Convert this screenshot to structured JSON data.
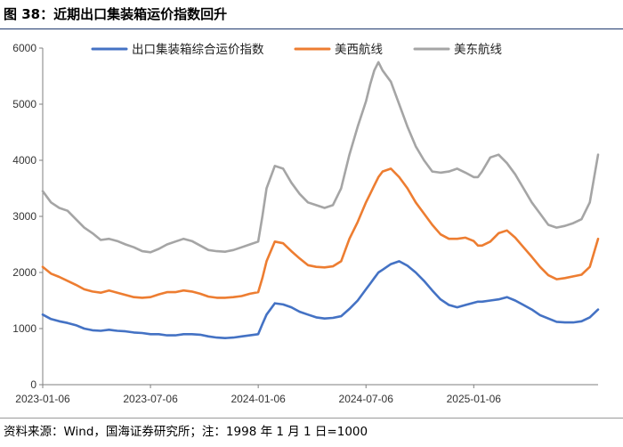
{
  "title": "图 38：近期出口集装箱运价指数回升",
  "source": "资料来源：Wind，国海证券研究所；注：1998 年 1 月 1 日=1000",
  "chart_data": {
    "type": "line",
    "title": "近期出口集装箱运价指数回升",
    "xlabel": "",
    "ylabel": "",
    "ylim": [
      0,
      6000
    ],
    "yticks": [
      0,
      1000,
      2000,
      3000,
      4000,
      5000,
      6000
    ],
    "x_range": [
      0,
      134
    ],
    "x_unit": "weeks since 2023-01-06",
    "xtick_labels": [
      {
        "x": 0,
        "label": "2023-01-06"
      },
      {
        "x": 26,
        "label": "2023-07-06"
      },
      {
        "x": 52,
        "label": "2024-01-06"
      },
      {
        "x": 78,
        "label": "2024-07-06"
      },
      {
        "x": 104,
        "label": "2025-01-06"
      }
    ],
    "legend_position": "top",
    "series": [
      {
        "name": "出口集装箱综合运价指数",
        "color": "#4472c4",
        "x": [
          0,
          2,
          4,
          6,
          8,
          10,
          12,
          14,
          16,
          18,
          20,
          22,
          24,
          26,
          28,
          30,
          32,
          34,
          36,
          38,
          40,
          42,
          44,
          46,
          48,
          50,
          52,
          53,
          54,
          56,
          58,
          60,
          62,
          64,
          66,
          68,
          70,
          72,
          74,
          76,
          78,
          79,
          80,
          81,
          82,
          84,
          86,
          88,
          90,
          92,
          94,
          96,
          98,
          100,
          102,
          104,
          105,
          106,
          108,
          110,
          112,
          114,
          116,
          118,
          120,
          122,
          124,
          126,
          128,
          130,
          132,
          134
        ],
        "values": [
          1250,
          1170,
          1130,
          1100,
          1060,
          1000,
          970,
          960,
          980,
          960,
          950,
          930,
          920,
          900,
          900,
          880,
          880,
          900,
          900,
          890,
          860,
          840,
          830,
          840,
          860,
          880,
          900,
          1080,
          1250,
          1450,
          1430,
          1380,
          1300,
          1250,
          1200,
          1180,
          1190,
          1220,
          1350,
          1500,
          1700,
          1800,
          1900,
          2000,
          2050,
          2150,
          2200,
          2120,
          2000,
          1850,
          1680,
          1520,
          1420,
          1380,
          1420,
          1460,
          1480,
          1480,
          1500,
          1520,
          1560,
          1500,
          1420,
          1340,
          1240,
          1180,
          1120,
          1110,
          1110,
          1130,
          1200,
          1340
        ]
      },
      {
        "name": "美西航线",
        "color": "#ed7d31",
        "x": [
          0,
          2,
          4,
          6,
          8,
          10,
          12,
          14,
          16,
          18,
          20,
          22,
          24,
          26,
          28,
          30,
          32,
          34,
          36,
          38,
          40,
          42,
          44,
          46,
          48,
          50,
          52,
          53,
          54,
          56,
          58,
          60,
          62,
          64,
          66,
          68,
          70,
          72,
          74,
          76,
          78,
          79,
          80,
          81,
          82,
          84,
          86,
          88,
          90,
          92,
          94,
          96,
          98,
          100,
          102,
          104,
          105,
          106,
          108,
          110,
          112,
          114,
          116,
          118,
          120,
          122,
          124,
          126,
          128,
          130,
          132,
          134
        ],
        "values": [
          2100,
          1980,
          1920,
          1850,
          1780,
          1700,
          1660,
          1640,
          1680,
          1640,
          1600,
          1560,
          1550,
          1560,
          1610,
          1650,
          1650,
          1680,
          1660,
          1620,
          1570,
          1550,
          1550,
          1560,
          1580,
          1620,
          1650,
          1900,
          2200,
          2550,
          2520,
          2380,
          2250,
          2130,
          2100,
          2090,
          2110,
          2200,
          2600,
          2900,
          3250,
          3400,
          3550,
          3700,
          3800,
          3850,
          3700,
          3500,
          3250,
          3050,
          2850,
          2680,
          2600,
          2600,
          2620,
          2560,
          2480,
          2480,
          2550,
          2700,
          2750,
          2620,
          2450,
          2280,
          2100,
          1950,
          1880,
          1900,
          1930,
          1960,
          2100,
          2600
        ]
      },
      {
        "name": "美东航线",
        "color": "#a5a5a5",
        "x": [
          0,
          2,
          4,
          6,
          8,
          10,
          12,
          14,
          16,
          18,
          20,
          22,
          24,
          26,
          28,
          30,
          32,
          34,
          36,
          38,
          40,
          42,
          44,
          46,
          48,
          50,
          52,
          53,
          54,
          56,
          58,
          60,
          62,
          64,
          66,
          68,
          70,
          72,
          74,
          76,
          78,
          79,
          80,
          81,
          82,
          84,
          86,
          88,
          90,
          92,
          94,
          96,
          98,
          100,
          102,
          104,
          105,
          106,
          108,
          110,
          112,
          114,
          116,
          118,
          120,
          122,
          124,
          126,
          128,
          130,
          132,
          134
        ],
        "values": [
          3450,
          3250,
          3150,
          3100,
          2950,
          2800,
          2700,
          2580,
          2600,
          2560,
          2500,
          2450,
          2380,
          2360,
          2420,
          2500,
          2550,
          2600,
          2560,
          2480,
          2400,
          2380,
          2370,
          2400,
          2450,
          2500,
          2550,
          3000,
          3500,
          3900,
          3850,
          3600,
          3400,
          3250,
          3200,
          3150,
          3200,
          3500,
          4100,
          4600,
          5050,
          5350,
          5600,
          5750,
          5600,
          5400,
          5000,
          4600,
          4250,
          4000,
          3800,
          3780,
          3800,
          3850,
          3780,
          3700,
          3700,
          3800,
          4050,
          4100,
          3950,
          3750,
          3500,
          3250,
          3050,
          2850,
          2800,
          2830,
          2880,
          2950,
          3250,
          4100
        ]
      }
    ]
  }
}
